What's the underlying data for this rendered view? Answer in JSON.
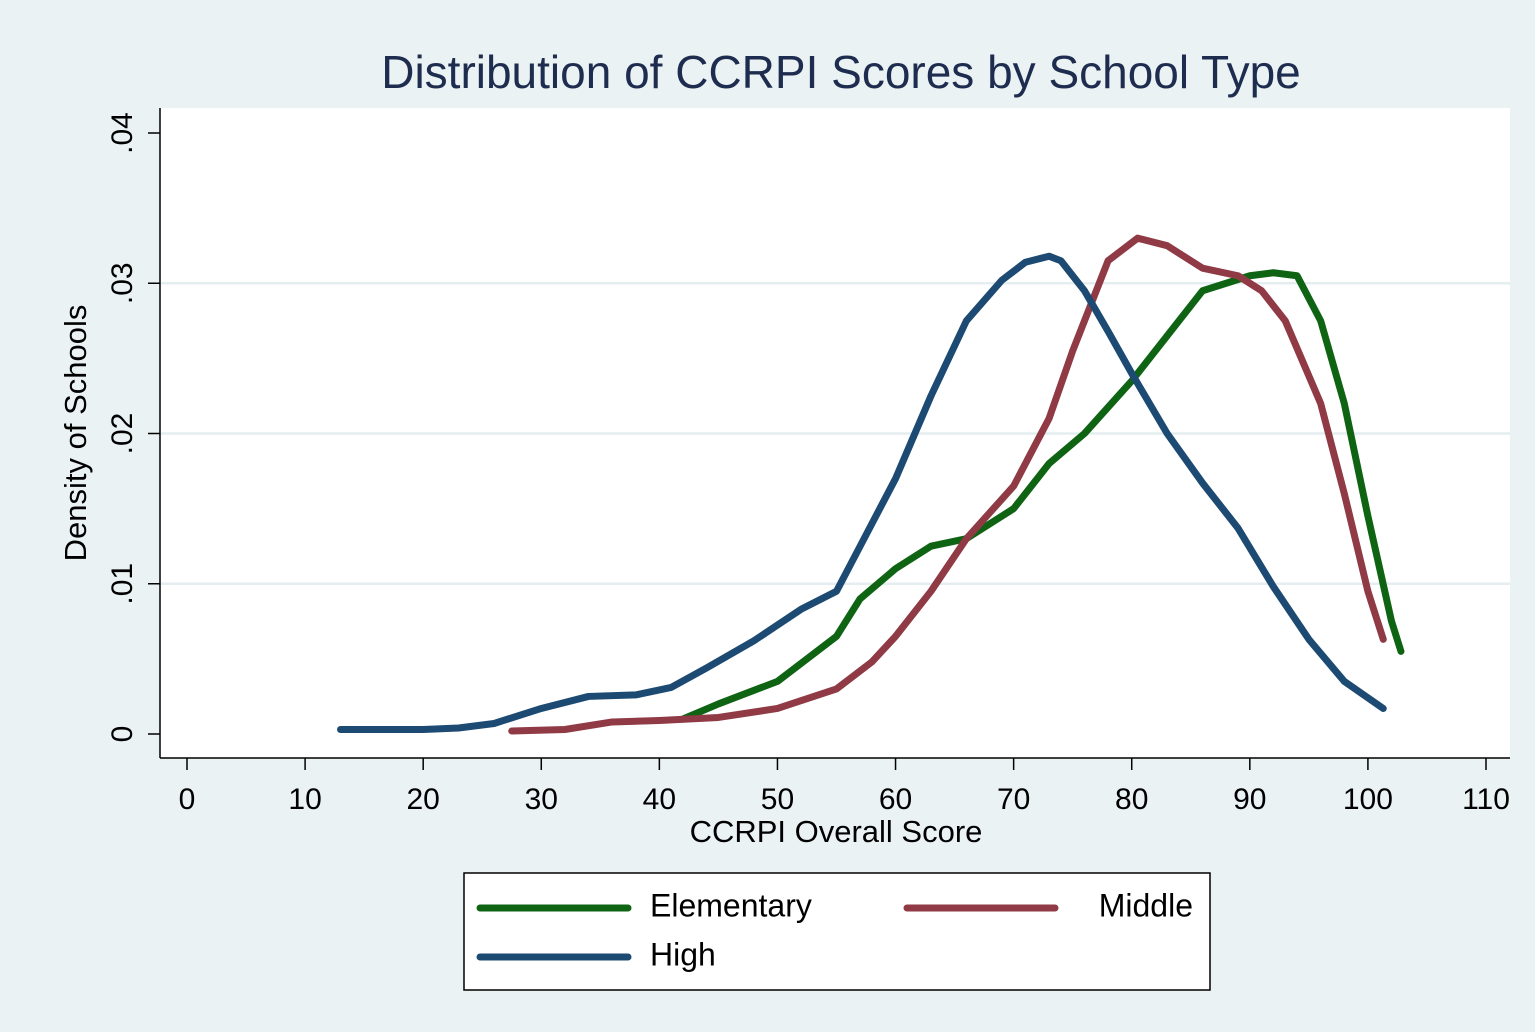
{
  "chart_data": {
    "type": "line",
    "title": "Distribution of CCRPI Scores by School Type",
    "x_label": "CCRPI Overall Score",
    "y_label": "Density of Schools",
    "xlim": [
      0,
      110
    ],
    "xticks": [
      0,
      10,
      20,
      30,
      40,
      50,
      60,
      70,
      80,
      90,
      100,
      110
    ],
    "ylim": [
      0,
      0.04
    ],
    "yticks": [
      0,
      {
        "value": 0.01,
        "label": ".01"
      },
      {
        "value": 0.02,
        "label": ".02"
      },
      {
        "value": 0.03,
        "label": ".03"
      },
      {
        "value": 0.04,
        "label": ".04"
      }
    ],
    "grid": true,
    "legend": "bottom",
    "series": [
      {
        "name": "Elementary",
        "color": "#0f6414",
        "x": [
          42,
          45,
          50,
          55,
          57,
          60,
          63,
          66,
          70,
          73,
          76,
          80,
          83,
          86,
          90,
          92,
          94,
          96,
          98,
          100,
          102,
          102.8
        ],
        "values": [
          0.001,
          0.002,
          0.0035,
          0.0065,
          0.009,
          0.011,
          0.0125,
          0.013,
          0.015,
          0.018,
          0.02,
          0.0235,
          0.0265,
          0.0295,
          0.0305,
          0.0307,
          0.0305,
          0.0275,
          0.022,
          0.0145,
          0.0075,
          0.0055
        ]
      },
      {
        "name": "Middle",
        "color": "#8f3a44",
        "x": [
          27.5,
          32,
          36,
          40,
          45,
          50,
          55,
          58,
          60,
          63,
          66,
          70,
          73,
          75,
          78,
          80.5,
          83,
          86,
          89,
          91,
          93,
          96,
          98,
          100,
          101.3
        ],
        "values": [
          0.0002,
          0.0003,
          0.0008,
          0.0009,
          0.0011,
          0.0017,
          0.003,
          0.0048,
          0.0065,
          0.0095,
          0.013,
          0.0165,
          0.021,
          0.0255,
          0.0315,
          0.033,
          0.0325,
          0.031,
          0.0305,
          0.0295,
          0.0275,
          0.022,
          0.016,
          0.0095,
          0.0063
        ]
      },
      {
        "name": "High",
        "color": "#1c4a72",
        "x": [
          13,
          20,
          23,
          26,
          30,
          34,
          38,
          41,
          44,
          48,
          52,
          55,
          57,
          60,
          63,
          66,
          69,
          71,
          73,
          74,
          76,
          78,
          80,
          83,
          86,
          89,
          92,
          95,
          98,
          101.3
        ],
        "values": [
          0.0003,
          0.0003,
          0.0004,
          0.0007,
          0.0017,
          0.0025,
          0.0026,
          0.0031,
          0.0044,
          0.0062,
          0.0083,
          0.0095,
          0.0125,
          0.017,
          0.0225,
          0.0275,
          0.0302,
          0.0314,
          0.0318,
          0.0315,
          0.0295,
          0.0268,
          0.024,
          0.02,
          0.0167,
          0.0137,
          0.0098,
          0.0063,
          0.0035,
          0.0017
        ]
      }
    ]
  }
}
